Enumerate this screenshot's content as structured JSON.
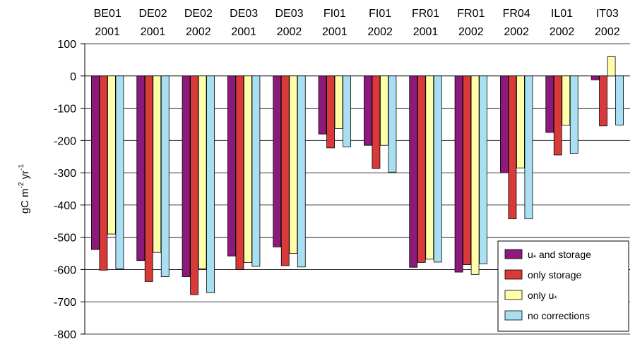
{
  "chart_data": {
    "type": "bar",
    "title": "",
    "xlabel": "",
    "ylabel": "gC m⁻² yr⁻¹",
    "ylabel_parts": {
      "base": "gC m",
      "exp1": "-2",
      "mid": " yr",
      "exp2": "-1"
    },
    "ylim": [
      -800,
      100
    ],
    "yticks": [
      100,
      0,
      -100,
      -200,
      -300,
      -400,
      -500,
      -600,
      -700,
      -800
    ],
    "grid": "horizontal",
    "legend_position": "bottom-right",
    "categories": [
      [
        "BE01",
        "2001"
      ],
      [
        "DE02",
        "2001"
      ],
      [
        "DE02",
        "2002"
      ],
      [
        "DE03",
        "2001"
      ],
      [
        "DE03",
        "2002"
      ],
      [
        "FI01",
        "2001"
      ],
      [
        "FI01",
        "2002"
      ],
      [
        "FR01",
        "2001"
      ],
      [
        "FR01",
        "2002"
      ],
      [
        "FR04",
        "2002"
      ],
      [
        "IL01",
        "2002"
      ],
      [
        "IT03",
        "2002"
      ]
    ],
    "series": [
      {
        "name": "u* and storage",
        "name_parts": {
          "main": "u",
          "sub": "*",
          "rest": " and storage"
        },
        "color": "#8B1A7A",
        "values": [
          -538,
          -572,
          -622,
          -558,
          -530,
          -180,
          -215,
          -593,
          -608,
          -300,
          -175,
          -12
        ]
      },
      {
        "name": "only storage",
        "name_parts": {
          "main": "only storage",
          "sub": "",
          "rest": ""
        },
        "color": "#D83A3A",
        "values": [
          -602,
          -637,
          -678,
          -600,
          -588,
          -223,
          -287,
          -578,
          -585,
          -443,
          -245,
          -155
        ]
      },
      {
        "name": "only u*",
        "name_parts": {
          "main": "only u",
          "sub": "*",
          "rest": ""
        },
        "color": "#FFFFAA",
        "values": [
          -490,
          -547,
          -597,
          -578,
          -550,
          -163,
          -215,
          -568,
          -615,
          -285,
          -153,
          60
        ]
      },
      {
        "name": "no corrections",
        "name_parts": {
          "main": "no corrections",
          "sub": "",
          "rest": ""
        },
        "color": "#A8DFF2",
        "values": [
          -598,
          -622,
          -672,
          -590,
          -592,
          -220,
          -298,
          -577,
          -582,
          -443,
          -240,
          -152
        ]
      }
    ]
  }
}
